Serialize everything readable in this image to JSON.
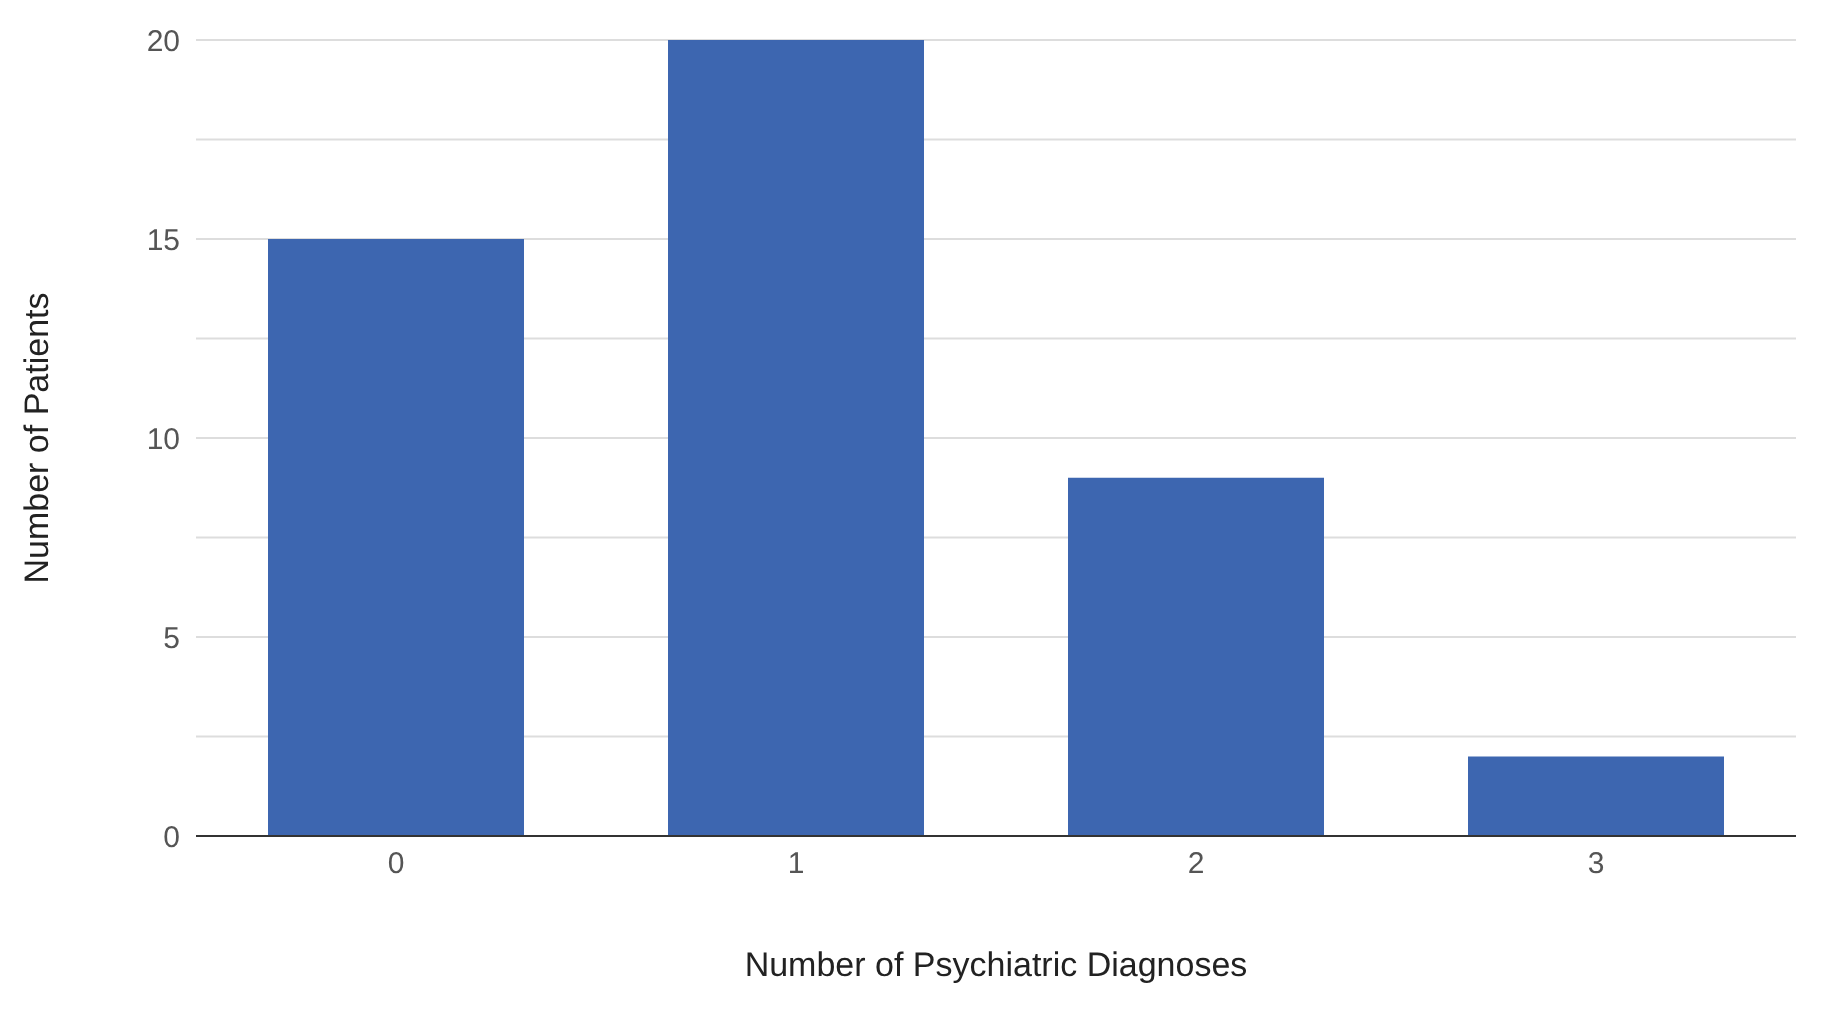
{
  "chart_data": {
    "type": "bar",
    "xlabel": "Number of Psychiatric Diagnoses",
    "ylabel": "Number of Patients",
    "categories": [
      "0",
      "1",
      "2",
      "3"
    ],
    "values": [
      15,
      20,
      9,
      2
    ],
    "color": "#3d66b0",
    "ylim": [
      0,
      20
    ],
    "yticks": [
      0,
      {
        "value": 2.5,
        "label": null
      },
      5,
      {
        "value": 7.5,
        "label": null
      },
      10,
      {
        "value": 12.5,
        "label": null
      },
      15,
      {
        "value": 17.5,
        "label": null
      },
      20
    ],
    "grid": "y"
  }
}
